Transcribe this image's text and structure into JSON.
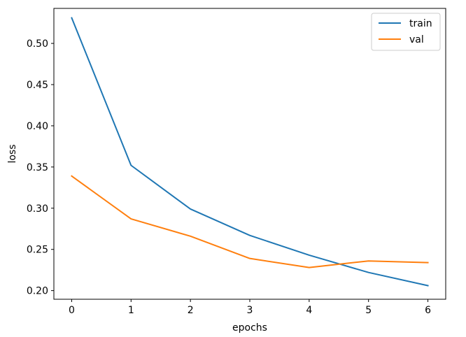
{
  "chart_data": {
    "type": "line",
    "title": "",
    "xlabel": "epochs",
    "ylabel": "loss",
    "x": [
      0,
      1,
      2,
      3,
      4,
      5,
      6
    ],
    "xticks": [
      0,
      1,
      2,
      3,
      4,
      5,
      6
    ],
    "yticks": [
      0.2,
      0.25,
      0.3,
      0.35,
      0.4,
      0.45,
      0.5
    ],
    "xlim": [
      -0.3,
      6.3
    ],
    "ylim": [
      0.1895,
      0.5425
    ],
    "grid": false,
    "legend_position": "upper right",
    "series": [
      {
        "name": "train",
        "color": "#1f77b4",
        "values": [
          0.531,
          0.352,
          0.299,
          0.267,
          0.243,
          0.222,
          0.206
        ]
      },
      {
        "name": "val",
        "color": "#ff7f0e",
        "values": [
          0.339,
          0.287,
          0.266,
          0.239,
          0.228,
          0.236,
          0.234
        ]
      }
    ]
  }
}
